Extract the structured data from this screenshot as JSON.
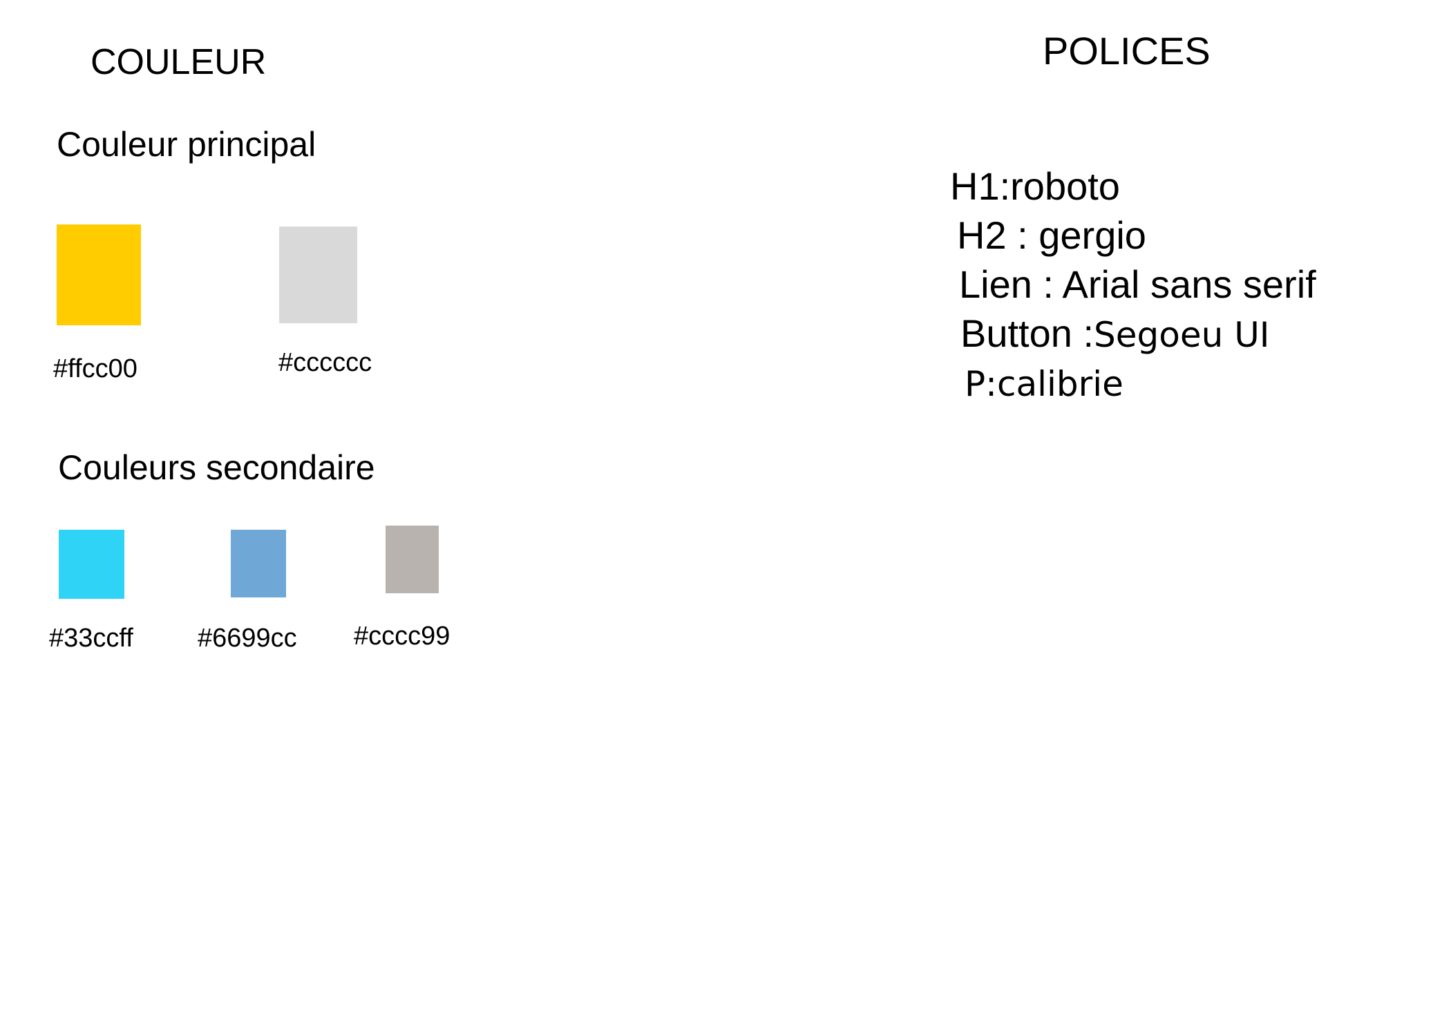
{
  "colors_section": {
    "title": "COULEUR",
    "primary": {
      "title": "Couleur principal",
      "swatches": [
        {
          "color": "#ffcc00",
          "label": "#ffcc00"
        },
        {
          "color": "#d9d9d9",
          "label": "#cccccc"
        }
      ]
    },
    "secondary": {
      "title": "Couleurs secondaire",
      "swatches": [
        {
          "color": "#2ed3f5",
          "label": "#33ccff"
        },
        {
          "color": "#6fa7d6",
          "label": "#6699cc"
        },
        {
          "color": "#b8b3ae",
          "label": "#cccc99"
        }
      ]
    }
  },
  "fonts_section": {
    "title": "POLICES",
    "lines": [
      {
        "text": "H1:roboto"
      },
      {
        "text": "H2 : gergio"
      },
      {
        "text": "Lien : Arial sans serif"
      },
      {
        "prefix": "Button :",
        "value": "Segoeu UI"
      },
      {
        "text": "P:calibrie"
      }
    ]
  }
}
